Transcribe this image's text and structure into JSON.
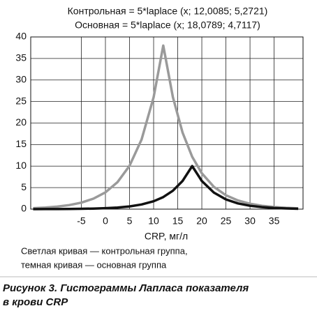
{
  "chart_data": {
    "type": "line",
    "x": [
      -15,
      -12.5,
      -10,
      -7.5,
      -5,
      -2.5,
      0,
      2.5,
      5,
      7.5,
      10,
      12,
      14,
      16,
      18,
      20,
      22.5,
      25,
      27.5,
      30,
      32.5,
      35,
      37.5,
      40
    ],
    "series": [
      {
        "name": "Контрольная = 5*laplace (x; 12,0085; 5,2721)",
        "color": "#9a9a9a",
        "values": [
          0.23,
          0.36,
          0.58,
          0.94,
          1.51,
          2.43,
          3.9,
          6.26,
          10.07,
          16.18,
          26.0,
          38,
          26.0,
          17.8,
          12.17,
          8.33,
          5.18,
          3.23,
          2.01,
          1.25,
          0.78,
          0.48,
          0.3,
          0.19
        ]
      },
      {
        "name": "Основная = 5*laplace (x; 18,0789; 4,7117)",
        "color": "#111111",
        "values": [
          0.01,
          0.02,
          0.03,
          0.04,
          0.08,
          0.13,
          0.22,
          0.37,
          0.63,
          1.08,
          1.83,
          2.8,
          4.28,
          6.54,
          10,
          6.54,
          3.85,
          2.26,
          1.33,
          0.78,
          0.46,
          0.27,
          0.16,
          0.09
        ]
      }
    ],
    "xlabel": "CRP, мг/л",
    "xlim": [
      -15.5,
      41
    ],
    "xticks": [
      -5,
      0,
      5,
      10,
      15,
      20,
      25,
      30,
      35
    ],
    "ylim": [
      0,
      40
    ],
    "yticks": [
      0,
      5,
      10,
      15,
      20,
      25,
      30,
      35,
      40
    ],
    "grid": true,
    "note": [
      "Светлая кривая — контрольная группа,",
      "темная кривая — основная группа"
    ],
    "caption": [
      "Рисунок 3.  Гистограммы Лапласа показателя",
      "в крови CRP"
    ]
  }
}
